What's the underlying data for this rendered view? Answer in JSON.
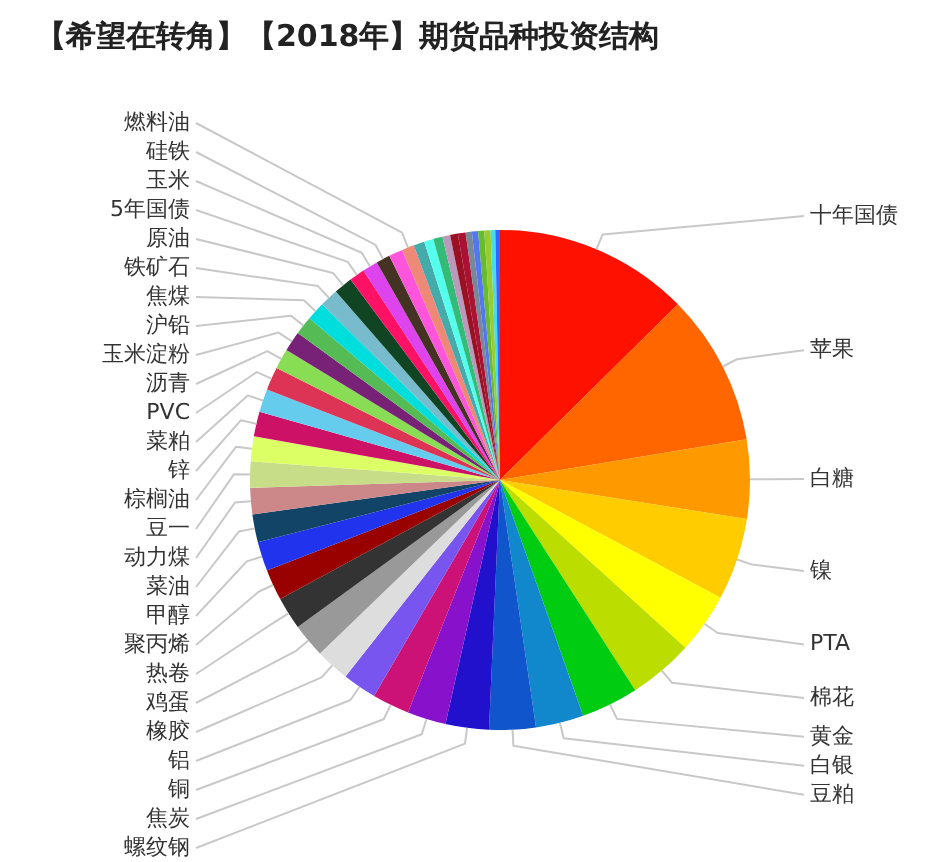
{
  "chart_data": {
    "type": "pie",
    "title": "【希望在转角】【2018年】期货品种投资结构",
    "categories": [
      "十年国债",
      "苹果",
      "白糖",
      "镍",
      "PTA",
      "棉花",
      "黄金",
      "白银",
      "豆粕",
      "螺纹钢",
      "焦炭",
      "铜",
      "铝",
      "橡胶",
      "鸡蛋",
      "热卷",
      "聚丙烯",
      "甲醇",
      "菜油",
      "动力煤",
      "豆一",
      "棕榈油",
      "锌",
      "菜粕",
      "PVC",
      "沥青",
      "玉米淀粉",
      "沪铅",
      "焦煤",
      "铁矿石",
      "原油",
      "5年国债",
      "玉米",
      "硅铁",
      null,
      "燃料油",
      null,
      null,
      null,
      null,
      null,
      null,
      null,
      null,
      null,
      null,
      null,
      null
    ],
    "values": [
      12.6,
      9.8,
      5.1,
      5.3,
      3.9,
      4.2,
      3.7,
      3.1,
      3.0,
      2.8,
      2.5,
      2.4,
      2.2,
      2.2,
      2.2,
      2.1,
      2.0,
      1.9,
      1.8,
      1.7,
      1.7,
      1.6,
      1.6,
      1.5,
      1.5,
      1.3,
      1.3,
      1.2,
      1.2,
      1.2,
      1.2,
      1.0,
      1.0,
      0.9,
      0.9,
      0.8,
      0.7,
      0.6,
      0.6,
      0.5,
      0.5,
      0.5,
      0.4,
      0.4,
      0.4,
      0.4,
      0.3,
      0.3
    ],
    "colors": [
      "#ff1100",
      "#ff6600",
      "#ff9900",
      "#ffcc00",
      "#ffff00",
      "#bbdd00",
      "#00cc11",
      "#1188cc",
      "#1155cc",
      "#2211cc",
      "#8811cc",
      "#cc1177",
      "#7755ee",
      "#dddddd",
      "#999999",
      "#333333",
      "#990000",
      "#2233ee",
      "#114466",
      "#cc8888",
      "#c8dd88",
      "#ddff66",
      "#cc1166",
      "#66ccee",
      "#dd3355",
      "#88dd55",
      "#772277",
      "#55bb55",
      "#00dddd",
      "#77bbcc",
      "#114422",
      "#ff1166",
      "#dd44ee",
      "#443322",
      "#ff55dd",
      "#ee8877",
      "#44aaaa",
      "#55ffee",
      "#33bb77",
      "#bb99bb",
      "#991122",
      "#aa1133",
      "#778899",
      "#5577ee",
      "#66bb33",
      "#99cc33",
      "#44ddee",
      "#3366ff"
    ]
  }
}
